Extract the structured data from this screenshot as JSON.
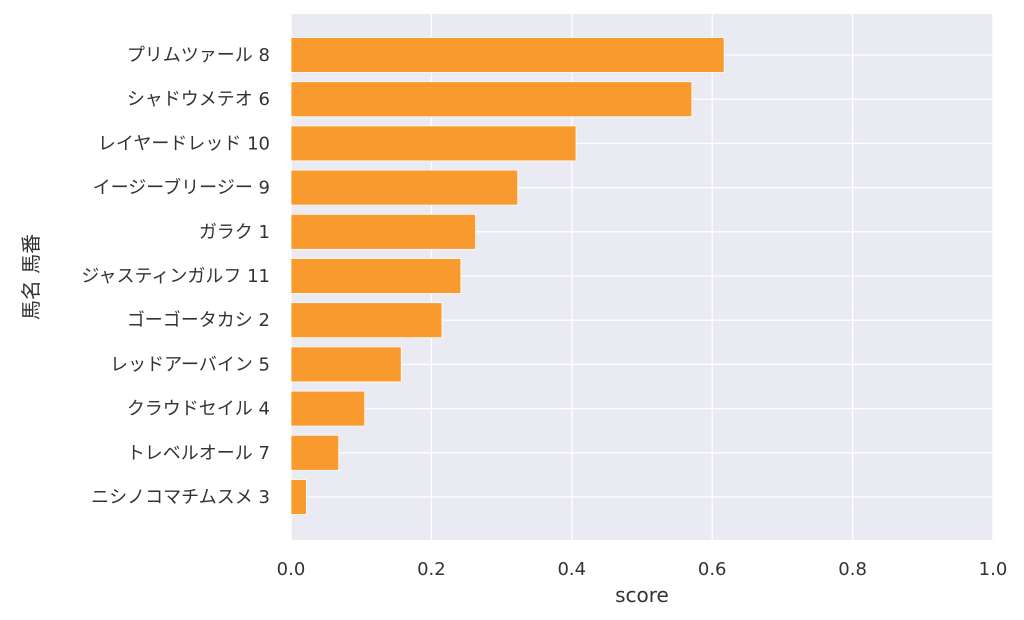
{
  "chart_data": {
    "type": "bar",
    "orientation": "horizontal",
    "categories": [
      "プリムツァール 8",
      "シャドウメテオ 6",
      "レイヤードレッド 10",
      "イージーブリージー 9",
      "ガラク 1",
      "ジャスティンガルフ 11",
      "ゴーゴータカシ 2",
      "レッドアーバイン 5",
      "クラウドセイル 4",
      "トレベルオール 7",
      "ニシノコマチムスメ 3"
    ],
    "values": [
      0.617,
      0.571,
      0.406,
      0.323,
      0.263,
      0.242,
      0.215,
      0.157,
      0.105,
      0.068,
      0.022
    ],
    "title": "",
    "xlabel": "score",
    "ylabel": "馬名 馬番",
    "xlim": [
      0,
      1.0
    ],
    "xticks": [
      "0.0",
      "0.2",
      "0.4",
      "0.6",
      "0.8",
      "1.0"
    ],
    "grid": true,
    "colors": {
      "bar": "#f89a2d",
      "plot_background": "#eaeaf2",
      "grid": "#ffffff"
    }
  }
}
